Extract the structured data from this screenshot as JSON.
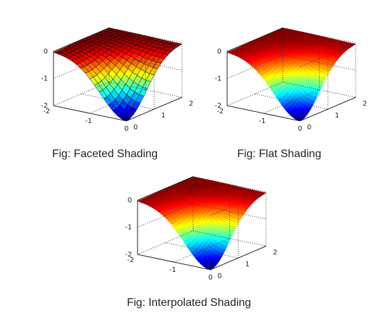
{
  "chart_data": [
    {
      "type": "surface",
      "shading": "faceted",
      "caption": "Fig: Faceted Shading",
      "z_function": "-exp(-x^2-y^2)-ish bowl",
      "xlim": [
        -2,
        0
      ],
      "ylim": [
        0,
        2
      ],
      "zlim": [
        -2,
        0
      ],
      "x_ticks": [
        "-2",
        "-1",
        "0"
      ],
      "y_ticks": [
        "0",
        "1",
        "2"
      ],
      "z_ticks": [
        "0",
        "-1",
        "-2"
      ],
      "grid": true,
      "colormap": "jet",
      "edge_color": "#000000"
    },
    {
      "type": "surface",
      "shading": "flat",
      "caption": "Fig: Flat Shading",
      "xlim": [
        -2,
        0
      ],
      "ylim": [
        0,
        2
      ],
      "zlim": [
        -2,
        0
      ],
      "x_ticks": [
        "-2",
        "-1",
        "0"
      ],
      "y_ticks": [
        "0",
        "1",
        "2"
      ],
      "z_ticks": [
        "0",
        "-1",
        "-2"
      ],
      "grid": true,
      "colormap": "jet"
    },
    {
      "type": "surface",
      "shading": "interp",
      "caption": "Fig: Interpolated Shading",
      "xlim": [
        -2,
        0
      ],
      "ylim": [
        0,
        2
      ],
      "zlim": [
        -2,
        0
      ],
      "x_ticks": [
        "-2",
        "-1",
        "0"
      ],
      "y_ticks": [
        "0",
        "1",
        "2"
      ],
      "z_ticks": [
        "0",
        "-1",
        "-2"
      ],
      "grid": true,
      "colormap": "jet"
    }
  ]
}
